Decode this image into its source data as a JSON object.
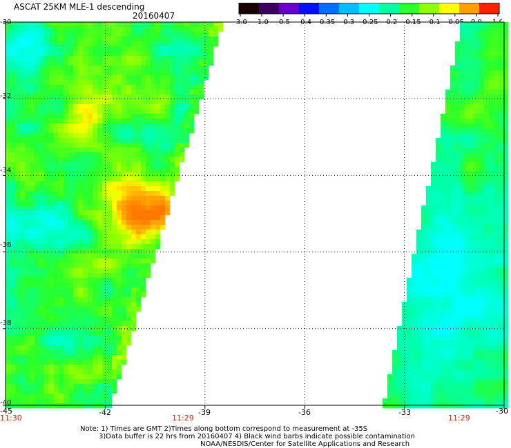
{
  "title": "ASCAT 25KM MLE-1 descending",
  "date": "20160407",
  "colorbar": {
    "labels": [
      "-3.0",
      "-1.0",
      "-0.5",
      "-0.4",
      "-0.35",
      "-0.3",
      "-0.25",
      "-0.2",
      "-0.15",
      "-0.1",
      "-0.05",
      "0.0",
      "1.0"
    ],
    "colors": [
      "#1a0000",
      "#3d0060",
      "#6a00c8",
      "#0010ff",
      "#0070ff",
      "#00c0ff",
      "#00ffff",
      "#00ffa0",
      "#30ff30",
      "#90ff00",
      "#ffff00",
      "#ffa000",
      "#ff2000"
    ]
  },
  "lat_labels": [
    "-30",
    "-32",
    "-34",
    "-36",
    "-38",
    "-40"
  ],
  "lon_labels": [
    "-45",
    "-42",
    "-39",
    "-36",
    "-33",
    "-30"
  ],
  "time_labels": [
    "11:30",
    "11:29",
    "11:29"
  ],
  "notes": [
    "Note: 1) Times are GMT 2)Times along bottom correspond to measurement at -35S",
    "3)Data buffer is 22 hrs from 20160407 4) Black wind barbs indicate possible contamination",
    "NOAA/NESDIS/Center for Satellite Applications and Research"
  ]
}
